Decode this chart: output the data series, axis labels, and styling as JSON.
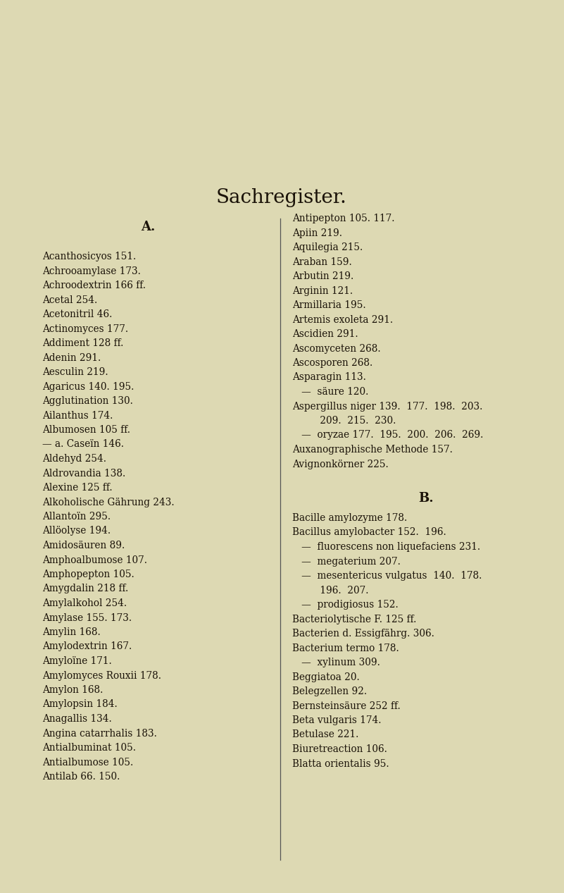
{
  "background_color": "#ddd9b3",
  "title": "Sachregister.",
  "title_fontsize": 20,
  "section_header_fontsize": 13,
  "text_fontsize": 9.8,
  "text_color": "#1a1208",
  "line_color": "#555555",
  "left_lines": [
    "Acanthosicyos 151.",
    "Achrooamylase 173.",
    "Achroodextrin 166 ff.",
    "Acetal 254.",
    "Acetonitril 46.",
    "Actinomyces 177.",
    "Addiment 128 ff.",
    "Adenin 291.",
    "Aesculin 219.",
    "Agaricus 140. 195.",
    "Agglutination 130.",
    "Ailanthus 174.",
    "Albumosen 105 ff.",
    "— a. Caseïn 146.",
    "Aldehyd 254.",
    "Aldrovandia 138.",
    "Alexine 125 ff.",
    "Alkoholische Gährung 243.",
    "Allantoïn 295.",
    "Allöolyse 194.",
    "Amidosäuren 89.",
    "Amphoalbumose 107.",
    "Amphopepton 105.",
    "Amygdalin 218 ff.",
    "Amylalkohol 254.",
    "Amylase 155. 173.",
    "Amylin 168.",
    "Amylodextrin 167.",
    "Amyloïne 171.",
    "Amylomyces Rouxii 178.",
    "Amylon 168.",
    "Amylopsin 184.",
    "Anagallis 134.",
    "Angina catarrhalis 183.",
    "Antialbuminat 105.",
    "Antialbumose 105.",
    "Antilab 66. 150."
  ],
  "right_lines_top": [
    "Antipepton 105. 117.",
    "Apiin 219.",
    "Aquilegia 215.",
    "Araban 159.",
    "Arbutin 219.",
    "Arginin 121.",
    "Armillaria 195.",
    "Artemis exoleta 291.",
    "Ascidien 291.",
    "Ascomyceten 268.",
    "Ascosporen 268.",
    "Asparagin 113.",
    "   —  säure 120.",
    "Aspergillus niger 139.  177.  198.  203.",
    "         209.  215.  230.",
    "   —  oryzae 177.  195.  200.  206.  269.",
    "Auxanographische Methode 157.",
    "Avignonkörner 225."
  ],
  "right_lines_bottom": [
    "Bacille amylozyme 178.",
    "Bacillus amylobacter 152.  196.",
    "   —  fluorescens non liquefaciens 231.",
    "   —  megaterium 207.",
    "   —  mesentericus vulgatus  140.  178.",
    "         196.  207.",
    "   —  prodigiosus 152.",
    "Bacteriolytische F. 125 ff.",
    "Bacterien d. Essigfährg. 306.",
    "Bacterium termo 178.",
    "   —  xylinum 309.",
    "Beggiatoa 20.",
    "Belegzellen 92.",
    "Bernsteinsäure 252 ff.",
    "Beta vulgaris 174.",
    "Betulase 221.",
    "Biuretreaction 106.",
    "Blatta orientalis 95."
  ]
}
